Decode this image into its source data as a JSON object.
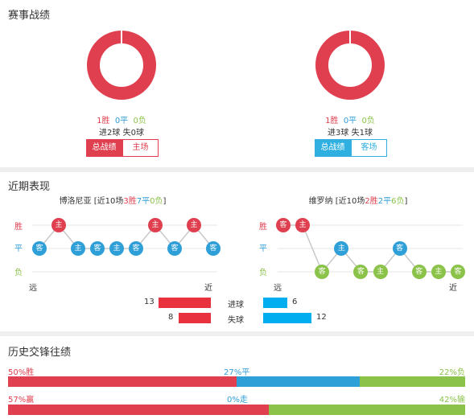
{
  "colors": {
    "win": "#df3f4f",
    "draw": "#2f9fd8",
    "loss": "#8bc34a",
    "line": "#cccccc",
    "gain": "#00aeef",
    "bar_red": "#e8323e"
  },
  "season": {
    "title": "赛事战绩",
    "home": {
      "record": {
        "w": 1,
        "d": 0,
        "l": 0
      },
      "wins": "1胜",
      "draws": "0平",
      "losses": "0负",
      "goals": "进2球 失0球",
      "tab_total": "总战绩",
      "tab_side": "主场"
    },
    "away": {
      "record": {
        "w": 1,
        "d": 0,
        "l": 0
      },
      "wins": "1胜",
      "draws": "0平",
      "losses": "0负",
      "goals": "进3球 失1球",
      "tab_total": "总战绩",
      "tab_side": "客场"
    }
  },
  "recent": {
    "title": "近期表现",
    "labels": {
      "win": "胜",
      "draw": "平",
      "loss": "负",
      "far": "远",
      "near": "近"
    },
    "home": {
      "team": "博洛尼亚",
      "summary_prefix": "[近10场",
      "w_text": "3胜",
      "d_text": "7平",
      "l_text": "0负",
      "summary_suffix": "]",
      "games": [
        {
          "r": "D",
          "v": "客"
        },
        {
          "r": "W",
          "v": "主"
        },
        {
          "r": "D",
          "v": "主"
        },
        {
          "r": "D",
          "v": "客"
        },
        {
          "r": "D",
          "v": "主"
        },
        {
          "r": "D",
          "v": "客"
        },
        {
          "r": "W",
          "v": "主"
        },
        {
          "r": "D",
          "v": "客"
        },
        {
          "r": "W",
          "v": "主"
        },
        {
          "r": "D",
          "v": "客"
        }
      ]
    },
    "away": {
      "team": "维罗纳",
      "summary_prefix": "[近10场",
      "w_text": "2胜",
      "d_text": "2平",
      "l_text": "6负",
      "summary_suffix": "]",
      "games": [
        {
          "r": "W",
          "v": "客"
        },
        {
          "r": "W",
          "v": "主"
        },
        {
          "r": "L",
          "v": "客"
        },
        {
          "r": "D",
          "v": "主"
        },
        {
          "r": "L",
          "v": "客"
        },
        {
          "r": "L",
          "v": "主"
        },
        {
          "r": "D",
          "v": "客"
        },
        {
          "r": "L",
          "v": "客"
        },
        {
          "r": "L",
          "v": "主"
        },
        {
          "r": "L",
          "v": "客"
        }
      ]
    },
    "goals": {
      "scored_label": "进球",
      "conceded_label": "失球",
      "home_scored": 13,
      "home_conceded": 8,
      "away_scored": 6,
      "away_conceded": 12
    }
  },
  "history": {
    "title": "历史交锋往绩",
    "row1": {
      "win_label": "50%胜",
      "draw_label": "27%平",
      "loss_label": "22%负",
      "win": 50,
      "draw": 27,
      "loss": 22
    },
    "row2": {
      "win_label": "57%赢",
      "draw_label": "0%走",
      "loss_label": "42%输",
      "win": 57,
      "draw": 0,
      "loss": 42
    }
  }
}
